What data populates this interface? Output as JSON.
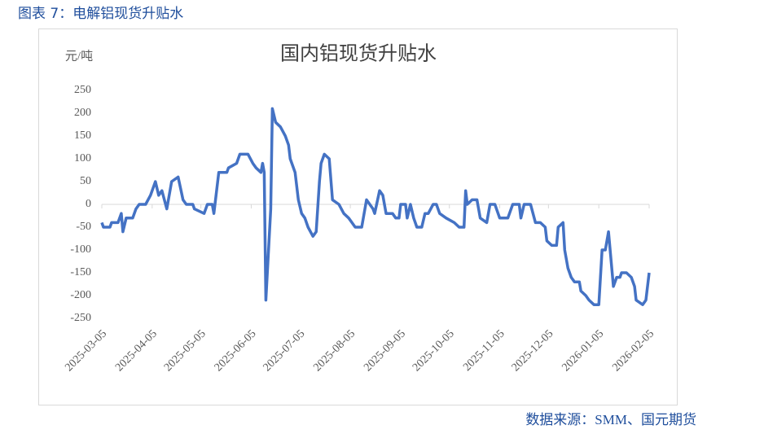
{
  "chart_data": {
    "type": "line",
    "figure_caption": "图表 7：电解铝现货升贴水",
    "title": "国内铝现货升贴水",
    "y_label": "元/吨",
    "source": "数据来源：SMM、国元期货",
    "color": "#4472c4",
    "x": [
      "2025-03-05",
      "2025-03-06",
      "2025-03-10",
      "2025-03-11",
      "2025-03-15",
      "2025-03-17",
      "2025-03-18",
      "2025-03-20",
      "2025-03-24",
      "2025-03-26",
      "2025-03-28",
      "2025-04-01",
      "2025-04-04",
      "2025-04-07",
      "2025-04-09",
      "2025-04-11",
      "2025-04-14",
      "2025-04-17",
      "2025-04-21",
      "2025-04-24",
      "2025-04-26",
      "2025-04-30",
      "2025-05-01",
      "2025-05-07",
      "2025-05-09",
      "2025-05-12",
      "2025-05-13",
      "2025-05-16",
      "2025-05-17",
      "2025-05-21",
      "2025-05-22",
      "2025-05-27",
      "2025-05-29",
      "2025-06-03",
      "2025-06-06",
      "2025-06-08",
      "2025-06-11",
      "2025-06-12",
      "2025-06-13",
      "2025-06-14",
      "2025-06-17",
      "2025-06-18",
      "2025-06-20",
      "2025-06-23",
      "2025-06-26",
      "2025-06-28",
      "2025-06-29",
      "2025-07-02",
      "2025-07-04",
      "2025-07-06",
      "2025-07-08",
      "2025-07-10",
      "2025-07-13",
      "2025-07-15",
      "2025-07-17",
      "2025-07-18",
      "2025-07-20",
      "2025-07-23",
      "2025-07-25",
      "2025-07-29",
      "2025-08-01",
      "2025-08-04",
      "2025-08-06",
      "2025-08-08",
      "2025-08-12",
      "2025-08-15",
      "2025-08-19",
      "2025-08-20",
      "2025-08-23",
      "2025-08-25",
      "2025-08-27",
      "2025-08-31",
      "2025-09-02",
      "2025-09-04",
      "2025-09-05",
      "2025-09-08",
      "2025-09-09",
      "2025-09-11",
      "2025-09-13",
      "2025-09-15",
      "2025-09-18",
      "2025-09-20",
      "2025-09-22",
      "2025-09-25",
      "2025-09-27",
      "2025-09-29",
      "2025-10-03",
      "2025-10-08",
      "2025-10-11",
      "2025-10-14",
      "2025-10-15",
      "2025-10-16",
      "2025-10-19",
      "2025-10-22",
      "2025-10-24",
      "2025-10-28",
      "2025-10-30",
      "2025-11-02",
      "2025-11-05",
      "2025-11-10",
      "2025-11-13",
      "2025-11-17",
      "2025-11-18",
      "2025-11-20",
      "2025-11-24",
      "2025-11-27",
      "2025-11-30",
      "2025-12-03",
      "2025-12-04",
      "2025-12-07",
      "2025-12-10",
      "2025-12-11",
      "2025-12-14",
      "2025-12-15",
      "2025-12-17",
      "2025-12-19",
      "2025-12-21",
      "2025-12-24",
      "2025-12-25",
      "2025-12-28",
      "2025-12-30",
      "2026-01-02",
      "2026-01-05",
      "2026-01-07",
      "2026-01-09",
      "2026-01-11",
      "2026-01-12",
      "2026-01-14",
      "2026-01-16",
      "2026-01-18",
      "2026-01-19",
      "2026-01-22",
      "2026-01-25",
      "2026-01-27",
      "2026-01-28",
      "2026-02-01",
      "2026-02-03",
      "2026-02-05"
    ],
    "values": [
      -40,
      -50,
      -50,
      -40,
      -40,
      -20,
      -60,
      -30,
      -30,
      -10,
      0,
      0,
      20,
      50,
      20,
      30,
      -10,
      50,
      60,
      10,
      0,
      0,
      -10,
      -20,
      0,
      0,
      -20,
      70,
      70,
      70,
      80,
      90,
      110,
      110,
      90,
      80,
      70,
      90,
      70,
      -210,
      -10,
      210,
      180,
      170,
      150,
      130,
      100,
      70,
      10,
      -20,
      -30,
      -50,
      -70,
      -60,
      50,
      90,
      110,
      100,
      10,
      0,
      -20,
      -30,
      -40,
      -50,
      -50,
      10,
      -10,
      -20,
      30,
      20,
      -20,
      -20,
      -30,
      -30,
      0,
      0,
      -30,
      0,
      -30,
      -50,
      -50,
      -20,
      -20,
      0,
      0,
      -20,
      -30,
      -40,
      -50,
      -50,
      30,
      0,
      10,
      10,
      -30,
      -40,
      0,
      0,
      -30,
      -30,
      0,
      0,
      -30,
      0,
      0,
      -40,
      -40,
      -50,
      -80,
      -90,
      -90,
      -50,
      -40,
      -100,
      -140,
      -160,
      -170,
      -170,
      -190,
      -200,
      -210,
      -220,
      -220,
      -100,
      -100,
      -60,
      -100,
      -180,
      -160,
      -160,
      -150,
      -150,
      -160,
      -180,
      -210,
      -220,
      -210,
      -150
    ],
    "xlim": [
      "2025-03-05",
      "2026-02-05"
    ],
    "xticks": [
      "2025-03-05",
      "2025-04-05",
      "2025-05-05",
      "2025-06-05",
      "2025-07-05",
      "2025-08-05",
      "2025-09-05",
      "2025-10-05",
      "2025-11-05",
      "2025-12-05",
      "2026-01-05",
      "2026-02-05"
    ],
    "ylim": [
      -250,
      250
    ],
    "yticks": [
      -250,
      -200,
      -150,
      -100,
      -50,
      0,
      50,
      100,
      150,
      200,
      250
    ]
  }
}
